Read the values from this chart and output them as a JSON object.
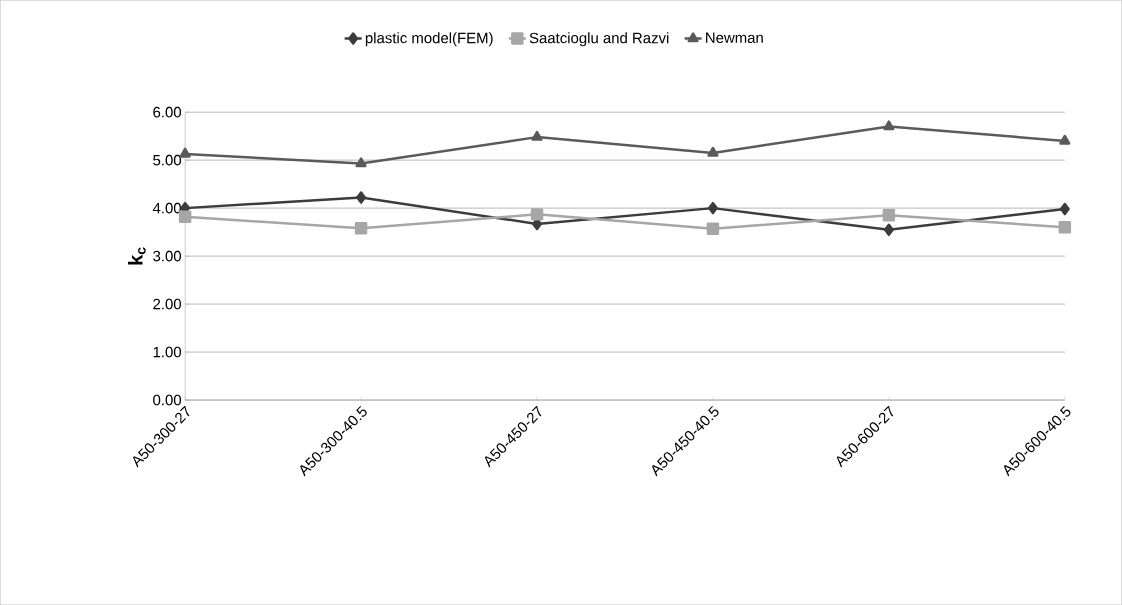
{
  "chart_data": {
    "type": "line",
    "ylabel": "k$_{c}$",
    "categories": [
      "A50-300-27",
      "A50-300-40.5",
      "A50-450-27",
      "A50-450-40.5",
      "A50-600-27",
      "A50-600-40.5"
    ],
    "series": [
      {
        "name": "plastic model(FEM)",
        "color": "#3c3c3c",
        "marker": "diamond",
        "values": [
          4.0,
          4.22,
          3.67,
          4.0,
          3.55,
          3.98
        ]
      },
      {
        "name": "Saatcioglu and Razvi",
        "color": "#a6a6a6",
        "marker": "square",
        "values": [
          3.82,
          3.58,
          3.87,
          3.57,
          3.85,
          3.6
        ]
      },
      {
        "name": "Newman",
        "color": "#5a5a5a",
        "marker": "triangle",
        "values": [
          5.13,
          4.93,
          5.48,
          5.15,
          5.7,
          5.4
        ]
      }
    ],
    "ylim": [
      0,
      6
    ],
    "yticks": [
      {
        "value": 0,
        "label": "0.00"
      },
      {
        "value": 1,
        "label": "1.00"
      },
      {
        "value": 2,
        "label": "2.00"
      },
      {
        "value": 3,
        "label": "3.00"
      },
      {
        "value": 4,
        "label": "4.00"
      },
      {
        "value": 5,
        "label": "5.00"
      },
      {
        "value": 6,
        "label": "6.00"
      }
    ],
    "grid": "y",
    "legend": "top",
    "line_style": "solid"
  }
}
